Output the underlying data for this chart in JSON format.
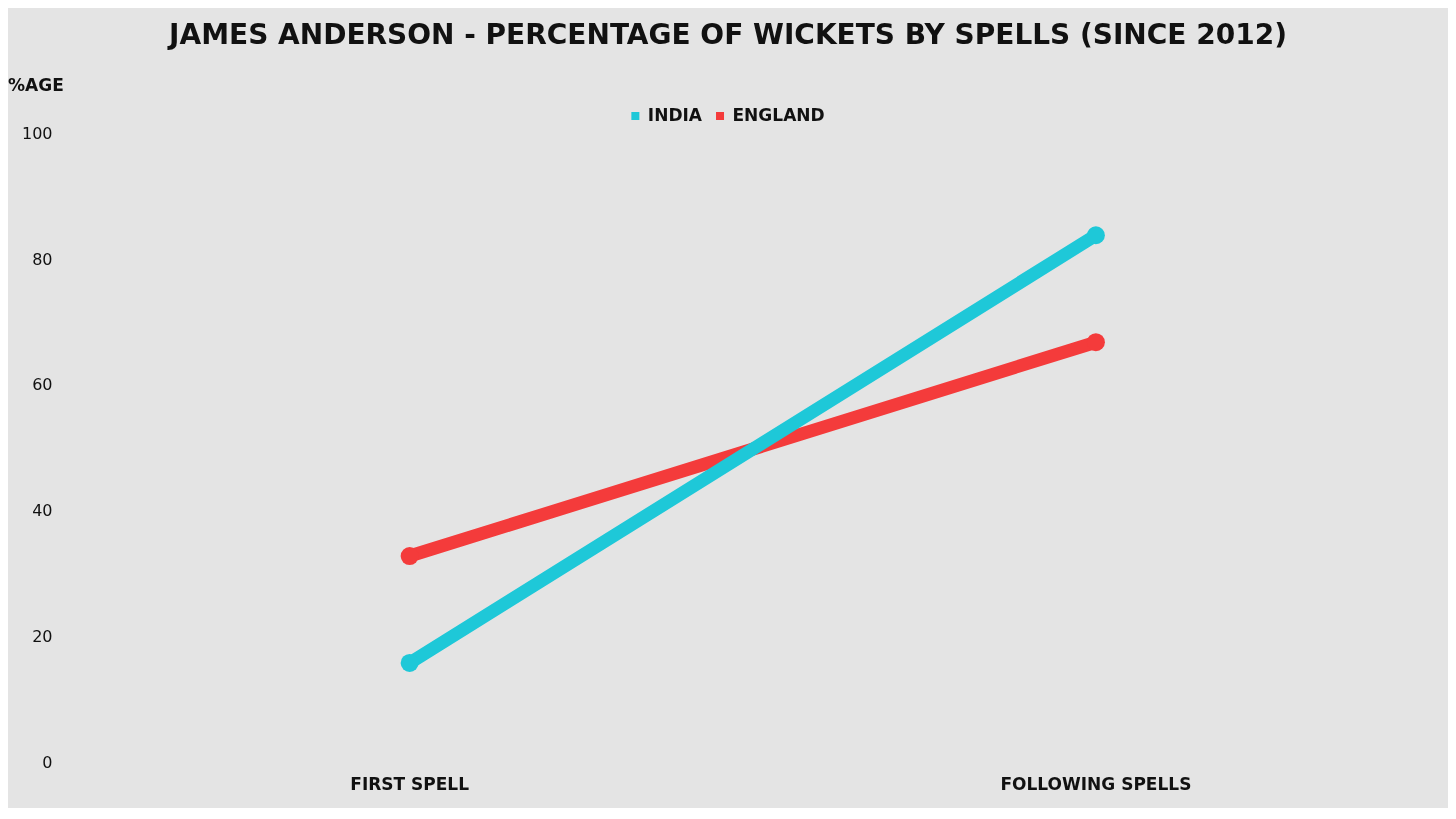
{
  "chart_data": {
    "type": "line",
    "title": "JAMES ANDERSON - PERCENTAGE OF WICKETS BY SPELLS (SINCE 2012)",
    "ylabel": "%AGE",
    "categories": [
      "FIRST SPELL",
      "FOLLOWING SPELLS"
    ],
    "series": [
      {
        "name": "INDIA",
        "color": "#1ec8d8",
        "values": [
          16,
          84
        ]
      },
      {
        "name": "ENGLAND",
        "color": "#f43b3b",
        "values": [
          33,
          67
        ]
      }
    ],
    "ylim": [
      0,
      100
    ],
    "yticks": [
      0,
      20,
      40,
      60,
      80,
      100
    ],
    "grid": false,
    "legend": "top",
    "marker": "circle",
    "line_style": "solid"
  }
}
